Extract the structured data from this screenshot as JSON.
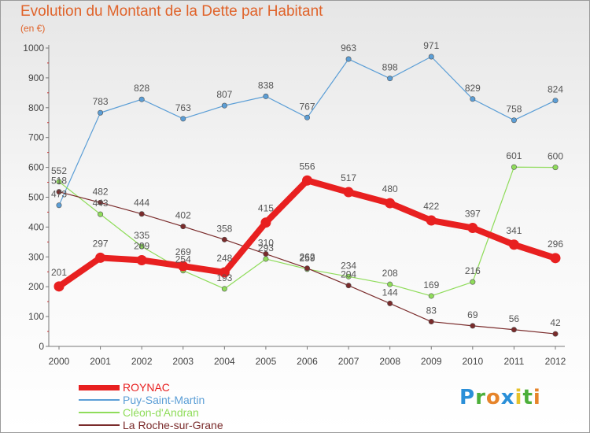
{
  "title": "Evolution du Montant de la Dette par Habitant",
  "subtitle": "(en €)",
  "logo": {
    "text": "Proxiti",
    "letters": [
      "P",
      "r",
      "o",
      "x",
      "i",
      "t",
      "i"
    ],
    "colors": [
      "#2a8fd8",
      "#4caf3a",
      "#e6842a",
      "#2a8fd8",
      "#e6c22a",
      "#4caf3a",
      "#e6842a"
    ]
  },
  "chart_data": {
    "type": "line",
    "title": "Evolution du Montant de la Dette par Habitant",
    "subtitle": "(en €)",
    "x": [
      "2000",
      "2001",
      "2002",
      "2003",
      "2004",
      "2005",
      "2006",
      "2007",
      "2008",
      "2009",
      "2010",
      "2011",
      "2012"
    ],
    "ylim": [
      0,
      1000
    ],
    "yticks": [
      "0",
      "100",
      "200",
      "300",
      "400",
      "500",
      "600",
      "700",
      "800",
      "900",
      "1000"
    ],
    "grid": false,
    "legend_position": "bottom-left",
    "series": [
      {
        "name": "ROYNAC",
        "color": "#e82020",
        "emphasis": true,
        "values": [
          201,
          297,
          289,
          269,
          248,
          415,
          556,
          517,
          480,
          422,
          397,
          341,
          296
        ],
        "labels": [
          "201",
          "297",
          "289",
          "269",
          "248",
          "415",
          "556",
          "517",
          "480",
          "422",
          "397",
          "341",
          "296"
        ]
      },
      {
        "name": "Puy-Saint-Martin",
        "color": "#5b9ed6",
        "values": [
          473,
          783,
          828,
          763,
          807,
          838,
          767,
          963,
          898,
          971,
          829,
          758,
          824
        ],
        "labels": [
          "473",
          "783",
          "828",
          "763",
          "807",
          "838",
          "767",
          "963",
          "898",
          "971",
          "829",
          "758",
          "824"
        ]
      },
      {
        "name": "Cléon-d'Andran",
        "color": "#8fdc5a",
        "values": [
          552,
          443,
          335,
          254,
          193,
          293,
          259,
          234,
          208,
          169,
          216,
          601,
          600
        ],
        "labels": [
          "552",
          "443",
          "335",
          "254",
          "193",
          "293",
          "259",
          "234",
          "208",
          "169",
          "216",
          "601",
          "600"
        ]
      },
      {
        "name": "La Roche-sur-Grane",
        "color": "#7a2b2b",
        "values": [
          518,
          482,
          444,
          402,
          358,
          310,
          262,
          204,
          144,
          83,
          69,
          56,
          42
        ],
        "labels": [
          "518",
          "482",
          "444",
          "402",
          "358",
          "310",
          "262",
          "204",
          "144",
          "83",
          "69",
          "56",
          "42"
        ]
      }
    ]
  }
}
